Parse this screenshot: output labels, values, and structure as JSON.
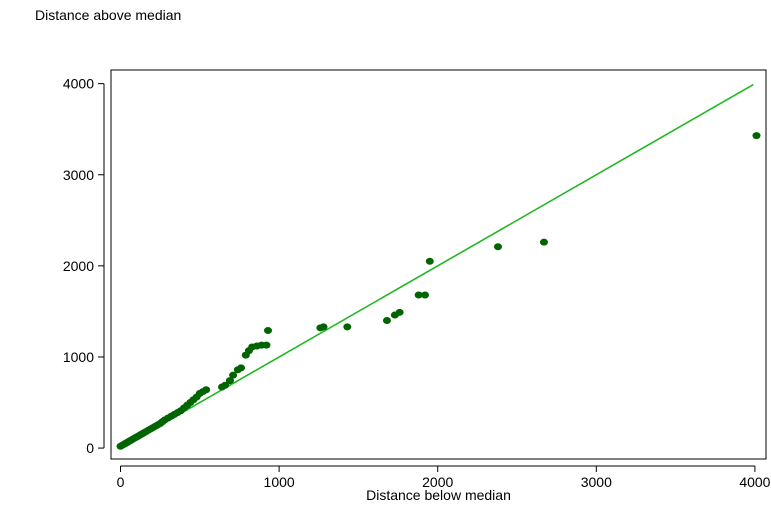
{
  "chart_data": {
    "type": "scatter",
    "title": "",
    "xlabel": "Distance below median",
    "ylabel": "Distance above median",
    "xlim": [
      -60,
      4070
    ],
    "ylim": [
      -120,
      4150
    ],
    "x_ticks": [
      0,
      1000,
      2000,
      3000,
      4000
    ],
    "y_ticks": [
      0,
      1000,
      2000,
      3000,
      4000
    ],
    "x_tick_labels": [
      "0",
      "1000",
      "2000",
      "3000",
      "4000"
    ],
    "y_tick_labels": [
      "0",
      "1000",
      "2000",
      "3000",
      "4000"
    ],
    "grid": false,
    "legend": "none",
    "colors": {
      "points": "#006400",
      "reference_line": "#22b822",
      "axes": "#000000"
    },
    "reference_line": {
      "x": [
        0,
        3990
      ],
      "y": [
        0,
        3990
      ]
    },
    "series": [
      {
        "x": [
          0,
          10,
          20,
          30,
          40,
          50,
          60,
          70,
          80,
          90,
          100,
          110,
          120,
          130,
          140,
          150,
          160,
          175,
          190,
          205,
          220,
          235,
          250,
          265,
          280,
          300,
          320,
          340,
          360,
          380,
          400,
          420,
          440,
          460,
          480,
          500,
          520,
          540,
          640,
          660,
          690,
          710,
          740,
          760,
          790,
          810,
          830,
          860,
          890,
          920,
          930,
          1260,
          1280,
          1430,
          1680,
          1730,
          1760,
          1880,
          1920,
          1950,
          2380,
          2670,
          4010
        ],
        "y": [
          20,
          30,
          40,
          50,
          60,
          70,
          80,
          90,
          100,
          110,
          120,
          130,
          140,
          150,
          160,
          170,
          180,
          195,
          210,
          225,
          240,
          255,
          270,
          290,
          310,
          330,
          350,
          370,
          390,
          410,
          440,
          470,
          500,
          530,
          560,
          600,
          620,
          640,
          670,
          690,
          740,
          800,
          860,
          880,
          1020,
          1070,
          1110,
          1120,
          1130,
          1130,
          1290,
          1320,
          1330,
          1330,
          1400,
          1460,
          1490,
          1680,
          1680,
          2050,
          2210,
          2260,
          3430
        ]
      }
    ]
  }
}
